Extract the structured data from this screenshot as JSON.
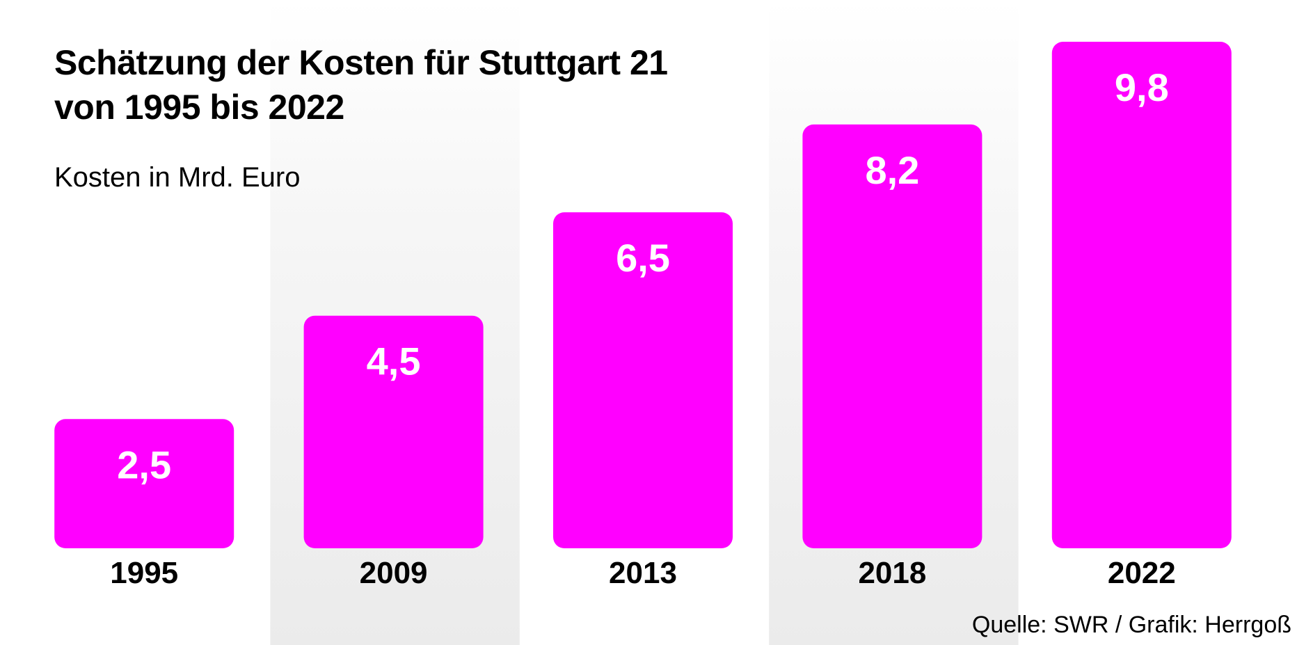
{
  "title_line1": "Schätzung der Kosten für Stuttgart 21",
  "title_line2": "von 1995 bis 2022",
  "subtitle": "Kosten in Mrd. Euro",
  "source": "Quelle: SWR / Grafik: Herrgoß",
  "colors": {
    "bar": "#ff00ff",
    "band": "#efefef",
    "value_text": "#ffffff",
    "text": "#000000"
  },
  "chart_data": {
    "type": "bar",
    "title": "Schätzung der Kosten für Stuttgart 21 von 1995 bis 2022",
    "ylabel": "Kosten in Mrd. Euro",
    "categories": [
      "1995",
      "2009",
      "2013",
      "2018",
      "2022"
    ],
    "values": [
      2.5,
      4.5,
      6.5,
      8.2,
      9.8
    ],
    "value_labels": [
      "2,5",
      "4,5",
      "6,5",
      "8,2",
      "9,8"
    ],
    "ylim": [
      0,
      10
    ],
    "grid": false,
    "legend": "none"
  }
}
